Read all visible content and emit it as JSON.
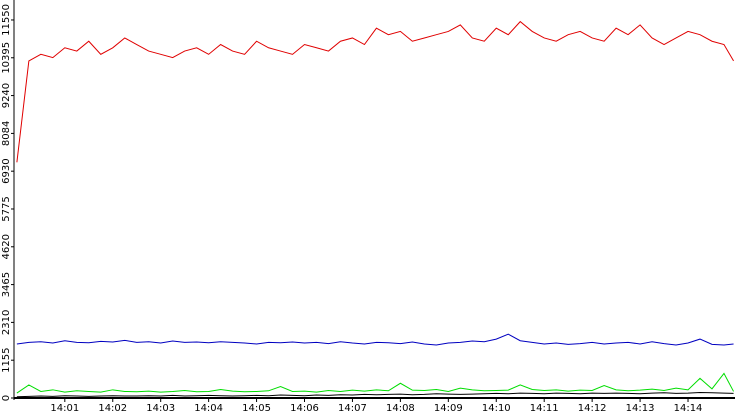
{
  "chart_data": {
    "type": "line",
    "x": [
      0,
      0.25,
      0.5,
      0.75,
      1,
      1.25,
      1.5,
      1.75,
      2,
      2.25,
      2.5,
      2.75,
      3,
      3.25,
      3.5,
      3.75,
      4,
      4.25,
      4.5,
      4.75,
      5,
      5.25,
      5.5,
      5.75,
      6,
      6.25,
      6.5,
      6.75,
      7,
      7.25,
      7.5,
      7.75,
      8,
      8.25,
      8.5,
      8.75,
      9,
      9.25,
      9.5,
      9.75,
      10,
      10.25,
      10.5,
      10.75,
      11,
      11.25,
      11.5,
      11.75,
      12,
      12.25,
      12.5,
      12.75,
      13,
      13.25,
      13.5,
      13.75,
      14,
      14.25,
      14.5,
      14.75,
      14.95
    ],
    "xlim": [
      -0.06,
      14.98
    ],
    "xticks": [
      {
        "value": 1,
        "label": "14:01"
      },
      {
        "value": 2,
        "label": "14:02"
      },
      {
        "value": 3,
        "label": "14:03"
      },
      {
        "value": 4,
        "label": "14:04"
      },
      {
        "value": 5,
        "label": "14:05"
      },
      {
        "value": 6,
        "label": "14:06"
      },
      {
        "value": 7,
        "label": "14:07"
      },
      {
        "value": 8,
        "label": "14:08"
      },
      {
        "value": 9,
        "label": "14:09"
      },
      {
        "value": 10,
        "label": "14:10"
      },
      {
        "value": 11,
        "label": "14:11"
      },
      {
        "value": 12,
        "label": "14:12"
      },
      {
        "value": 13,
        "label": "14:13"
      },
      {
        "value": 14,
        "label": "14:14"
      }
    ],
    "ylim": [
      0,
      12160
    ],
    "yticks": [
      0,
      1155,
      2310,
      3465,
      4620,
      5775,
      6930,
      8084,
      9240,
      10395,
      11550
    ],
    "series": [
      {
        "color": "#e00000",
        "values": [
          7200,
          10300,
          10500,
          10400,
          10700,
          10600,
          10900,
          10500,
          10700,
          11000,
          10800,
          10600,
          10500,
          10400,
          10600,
          10700,
          10500,
          10800,
          10600,
          10500,
          10900,
          10700,
          10600,
          10500,
          10800,
          10700,
          10600,
          10900,
          11000,
          10800,
          11300,
          11100,
          11200,
          10900,
          11000,
          11100,
          11200,
          11400,
          11000,
          10900,
          11300,
          11100,
          11500,
          11200,
          11000,
          10900,
          11100,
          11200,
          11000,
          10900,
          11300,
          11100,
          11400,
          11000,
          10800,
          11000,
          11200,
          11100,
          10900,
          10800,
          10300
        ]
      },
      {
        "color": "#0000c0",
        "values": [
          1650,
          1700,
          1720,
          1680,
          1750,
          1700,
          1690,
          1730,
          1710,
          1760,
          1700,
          1720,
          1680,
          1740,
          1700,
          1710,
          1690,
          1720,
          1700,
          1680,
          1650,
          1700,
          1690,
          1710,
          1680,
          1700,
          1660,
          1720,
          1680,
          1650,
          1700,
          1690,
          1660,
          1710,
          1650,
          1620,
          1680,
          1700,
          1740,
          1720,
          1800,
          1950,
          1750,
          1700,
          1650,
          1680,
          1640,
          1660,
          1700,
          1650,
          1680,
          1700,
          1650,
          1720,
          1660,
          1620,
          1680,
          1800,
          1640,
          1620,
          1650
        ]
      },
      {
        "color": "#00dd00",
        "values": [
          150,
          400,
          200,
          250,
          180,
          220,
          200,
          180,
          250,
          200,
          190,
          210,
          180,
          200,
          230,
          190,
          200,
          260,
          210,
          190,
          200,
          220,
          350,
          200,
          210,
          180,
          230,
          200,
          240,
          210,
          250,
          220,
          450,
          240,
          230,
          260,
          200,
          300,
          250,
          220,
          230,
          240,
          400,
          260,
          230,
          250,
          210,
          240,
          230,
          380,
          250,
          220,
          240,
          270,
          230,
          300,
          250,
          600,
          280,
          750,
          200
        ]
      },
      {
        "color": "#000000",
        "values": [
          40,
          50,
          60,
          50,
          70,
          60,
          50,
          60,
          70,
          60,
          60,
          70,
          60,
          80,
          60,
          70,
          80,
          70,
          60,
          70,
          80,
          70,
          90,
          80,
          70,
          90,
          80,
          100,
          90,
          110,
          100,
          110,
          120,
          100,
          110,
          130,
          120,
          110,
          120,
          130,
          140,
          130,
          150,
          140,
          130,
          150,
          140,
          130,
          150,
          140,
          150,
          140,
          130,
          150,
          160,
          140,
          150,
          170,
          160,
          150,
          140
        ]
      }
    ]
  }
}
